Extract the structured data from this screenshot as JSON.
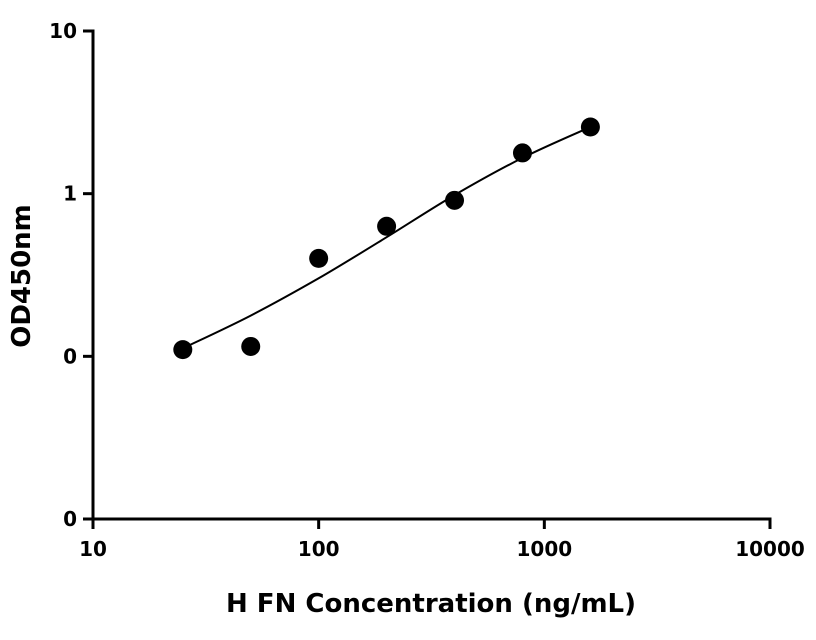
{
  "chart_data": {
    "type": "scatter",
    "title": "",
    "xlabel": "H FN Concentration (ng/mL)",
    "ylabel": "OD450nm",
    "x_scale": "log",
    "y_scale": "log",
    "xlim": [
      10,
      10000
    ],
    "ylim": [
      0.01,
      10
    ],
    "x_ticks": [
      {
        "value": 10,
        "label": "10"
      },
      {
        "value": 100,
        "label": "100"
      },
      {
        "value": 1000,
        "label": "1000"
      },
      {
        "value": 10000,
        "label": "10000"
      }
    ],
    "y_ticks": [
      {
        "value": 0.01,
        "label": "0"
      },
      {
        "value": 0.1,
        "label": "0"
      },
      {
        "value": 1,
        "label": "1"
      },
      {
        "value": 10,
        "label": "10"
      }
    ],
    "grid": false,
    "series": [
      {
        "points": [
          {
            "x": 25,
            "y": 0.11
          },
          {
            "x": 50,
            "y": 0.115
          },
          {
            "x": 100,
            "y": 0.4
          },
          {
            "x": 200,
            "y": 0.63
          },
          {
            "x": 400,
            "y": 0.91
          },
          {
            "x": 800,
            "y": 1.78
          },
          {
            "x": 1600,
            "y": 2.57
          }
        ]
      }
    ],
    "fit_curve": {
      "points": [
        {
          "x": 25,
          "y": 0.112
        },
        {
          "x": 50,
          "y": 0.178
        },
        {
          "x": 100,
          "y": 0.302
        },
        {
          "x": 200,
          "y": 0.54
        },
        {
          "x": 400,
          "y": 0.98
        },
        {
          "x": 800,
          "y": 1.66
        },
        {
          "x": 1600,
          "y": 2.57
        }
      ]
    }
  }
}
